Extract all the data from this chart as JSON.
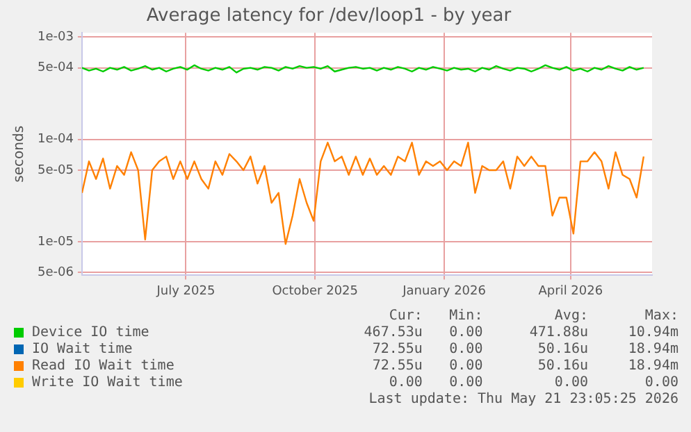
{
  "chart_data": {
    "type": "line",
    "title": "Average latency for /dev/loop1 - by year",
    "ylabel": "seconds",
    "log": "y",
    "grid": true,
    "legend": "bottom",
    "marker": "none",
    "line_style": "solid",
    "x": [
      "2025-04-18",
      "2025-04-23",
      "2025-04-28",
      "2025-05-03",
      "2025-05-08",
      "2025-05-13",
      "2025-05-18",
      "2025-05-23",
      "2025-05-28",
      "2025-06-02",
      "2025-06-07",
      "2025-06-12",
      "2025-06-17",
      "2025-06-22",
      "2025-06-27",
      "2025-07-02",
      "2025-07-07",
      "2025-07-12",
      "2025-07-17",
      "2025-07-22",
      "2025-07-27",
      "2025-08-01",
      "2025-08-06",
      "2025-08-11",
      "2025-08-16",
      "2025-08-21",
      "2025-08-26",
      "2025-08-31",
      "2025-09-05",
      "2025-09-10",
      "2025-09-15",
      "2025-09-20",
      "2025-09-25",
      "2025-09-30",
      "2025-10-05",
      "2025-10-10",
      "2025-10-15",
      "2025-10-20",
      "2025-10-25",
      "2025-10-30",
      "2025-11-04",
      "2025-11-09",
      "2025-11-14",
      "2025-11-19",
      "2025-11-24",
      "2025-11-29",
      "2025-12-04",
      "2025-12-09",
      "2025-12-14",
      "2025-12-19",
      "2025-12-24",
      "2025-12-29",
      "2026-01-03",
      "2026-01-08",
      "2026-01-13",
      "2026-01-18",
      "2026-01-23",
      "2026-01-28",
      "2026-02-02",
      "2026-02-07",
      "2026-02-12",
      "2026-02-17",
      "2026-02-22",
      "2026-02-27",
      "2026-03-04",
      "2026-03-09",
      "2026-03-14",
      "2026-03-19",
      "2026-03-24",
      "2026-03-29",
      "2026-04-03",
      "2026-04-08",
      "2026-04-13",
      "2026-04-18",
      "2026-04-23",
      "2026-04-28",
      "2026-05-03",
      "2026-05-08",
      "2026-05-13",
      "2026-05-18",
      "2026-05-23"
    ],
    "xlim": [
      "2025-04-18",
      "2026-05-29"
    ],
    "xticks": [
      {
        "value": "2025-07-01",
        "label": "July 2025"
      },
      {
        "value": "2025-10-01",
        "label": "October 2025"
      },
      {
        "value": "2026-01-01",
        "label": "January 2026"
      },
      {
        "value": "2026-04-01",
        "label": "April 2026"
      }
    ],
    "ylim": [
      4.7e-06,
      0.0011
    ],
    "yticks": [
      {
        "value": 5e-06,
        "label": "5e-06"
      },
      {
        "value": 1e-05,
        "label": "1e-05"
      },
      {
        "value": 5e-05,
        "label": "5e-05"
      },
      {
        "value": 0.0001,
        "label": "1e-04"
      },
      {
        "value": 0.0005,
        "label": "5e-04"
      },
      {
        "value": 0.001,
        "label": "1e-03"
      }
    ],
    "series": [
      {
        "name": "Device IO time",
        "color": "#00cc00",
        "values": [
          0.0005,
          0.00047,
          0.00049,
          0.00046,
          0.0005,
          0.00048,
          0.00051,
          0.00047,
          0.00049,
          0.00052,
          0.00048,
          0.0005,
          0.00046,
          0.00049,
          0.00051,
          0.00048,
          0.00053,
          0.00049,
          0.00047,
          0.0005,
          0.00048,
          0.00051,
          0.00045,
          0.00049,
          0.0005,
          0.00048,
          0.00051,
          0.0005,
          0.00047,
          0.00051,
          0.00049,
          0.00052,
          0.0005,
          0.00051,
          0.00049,
          0.00052,
          0.00046,
          0.00048,
          0.0005,
          0.00051,
          0.00049,
          0.0005,
          0.00047,
          0.0005,
          0.00048,
          0.00051,
          0.00049,
          0.00046,
          0.0005,
          0.00048,
          0.00051,
          0.00049,
          0.00047,
          0.0005,
          0.00048,
          0.00049,
          0.00046,
          0.0005,
          0.00048,
          0.00052,
          0.00049,
          0.00047,
          0.0005,
          0.00049,
          0.00046,
          0.00049,
          0.00053,
          0.0005,
          0.00048,
          0.00051,
          0.00047,
          0.00049,
          0.00046,
          0.0005,
          0.00048,
          0.00052,
          0.00049,
          0.00047,
          0.00051,
          0.00048,
          0.0005
        ]
      },
      {
        "name": "IO Wait time",
        "color": "#0066b3",
        "values": [
          null,
          null,
          null,
          null,
          null,
          null,
          null,
          null,
          null,
          null,
          null,
          null,
          null,
          null,
          null,
          null,
          null,
          null,
          null,
          null,
          null,
          null,
          null,
          null,
          null,
          null,
          null,
          null,
          null,
          null,
          null,
          null,
          null,
          null,
          null,
          null,
          null,
          null,
          null,
          null,
          null,
          null,
          null,
          null,
          null,
          null,
          null,
          null,
          null,
          null,
          null,
          null,
          null,
          null,
          null,
          null,
          null,
          null,
          null,
          null,
          null,
          null,
          null,
          null,
          null,
          null,
          null,
          null,
          null,
          null,
          null,
          null,
          null,
          null,
          null,
          null,
          null,
          null,
          null,
          null,
          null
        ]
      },
      {
        "name": "Read IO Wait time",
        "color": "#ff8000",
        "values": [
          3e-05,
          6.1e-05,
          4.1e-05,
          6.5e-05,
          3.3e-05,
          5.5e-05,
          4.5e-05,
          7.5e-05,
          5e-05,
          1.05e-05,
          5e-05,
          6.1e-05,
          6.8e-05,
          4.1e-05,
          6.1e-05,
          4.1e-05,
          6.1e-05,
          4.1e-05,
          3.3e-05,
          6.1e-05,
          4.5e-05,
          7.2e-05,
          6.1e-05,
          5e-05,
          6.8e-05,
          3.7e-05,
          5.5e-05,
          2.4e-05,
          3e-05,
          9.5e-06,
          1.8e-05,
          4.1e-05,
          2.4e-05,
          1.6e-05,
          6.1e-05,
          9.3e-05,
          6.1e-05,
          6.8e-05,
          4.5e-05,
          6.8e-05,
          4.5e-05,
          6.5e-05,
          4.5e-05,
          5.5e-05,
          4.5e-05,
          6.8e-05,
          6.1e-05,
          9.3e-05,
          4.5e-05,
          6.1e-05,
          5.5e-05,
          6.1e-05,
          5e-05,
          6.1e-05,
          5.5e-05,
          9.3e-05,
          3e-05,
          5.5e-05,
          5e-05,
          5e-05,
          6.1e-05,
          3.3e-05,
          6.8e-05,
          5.5e-05,
          6.8e-05,
          5.5e-05,
          5.5e-05,
          1.8e-05,
          2.7e-05,
          2.7e-05,
          1.2e-05,
          6.1e-05,
          6.1e-05,
          7.5e-05,
          6.1e-05,
          3.3e-05,
          7.5e-05,
          4.5e-05,
          4.1e-05,
          2.7e-05,
          6.8e-05
        ]
      },
      {
        "name": "Write IO Wait time",
        "color": "#ffcc00",
        "values": [
          null,
          null,
          null,
          null,
          null,
          null,
          null,
          null,
          null,
          null,
          null,
          null,
          null,
          null,
          null,
          null,
          null,
          null,
          null,
          null,
          null,
          null,
          null,
          null,
          null,
          null,
          null,
          null,
          null,
          null,
          null,
          null,
          null,
          null,
          null,
          null,
          null,
          null,
          null,
          null,
          null,
          null,
          null,
          null,
          null,
          null,
          null,
          null,
          null,
          null,
          null,
          null,
          null,
          null,
          null,
          null,
          null,
          null,
          null,
          null,
          null,
          null,
          null,
          null,
          null,
          null,
          null,
          null,
          null,
          null,
          null,
          null,
          null,
          null,
          null,
          null,
          null,
          null,
          null,
          null,
          null
        ]
      }
    ],
    "annotations": [
      "Cur:",
      "Min:",
      "Avg:",
      "Max:",
      "467.53u",
      "0.00",
      "471.88u",
      "10.94m",
      "72.55u",
      "0.00",
      "50.16u",
      "18.94m",
      "72.55u",
      "0.00",
      "50.16u",
      "18.94m",
      "0.00",
      "0.00",
      "0.00",
      "0.00",
      "Last update: Thu May 21 23:05:25 2026"
    ]
  }
}
